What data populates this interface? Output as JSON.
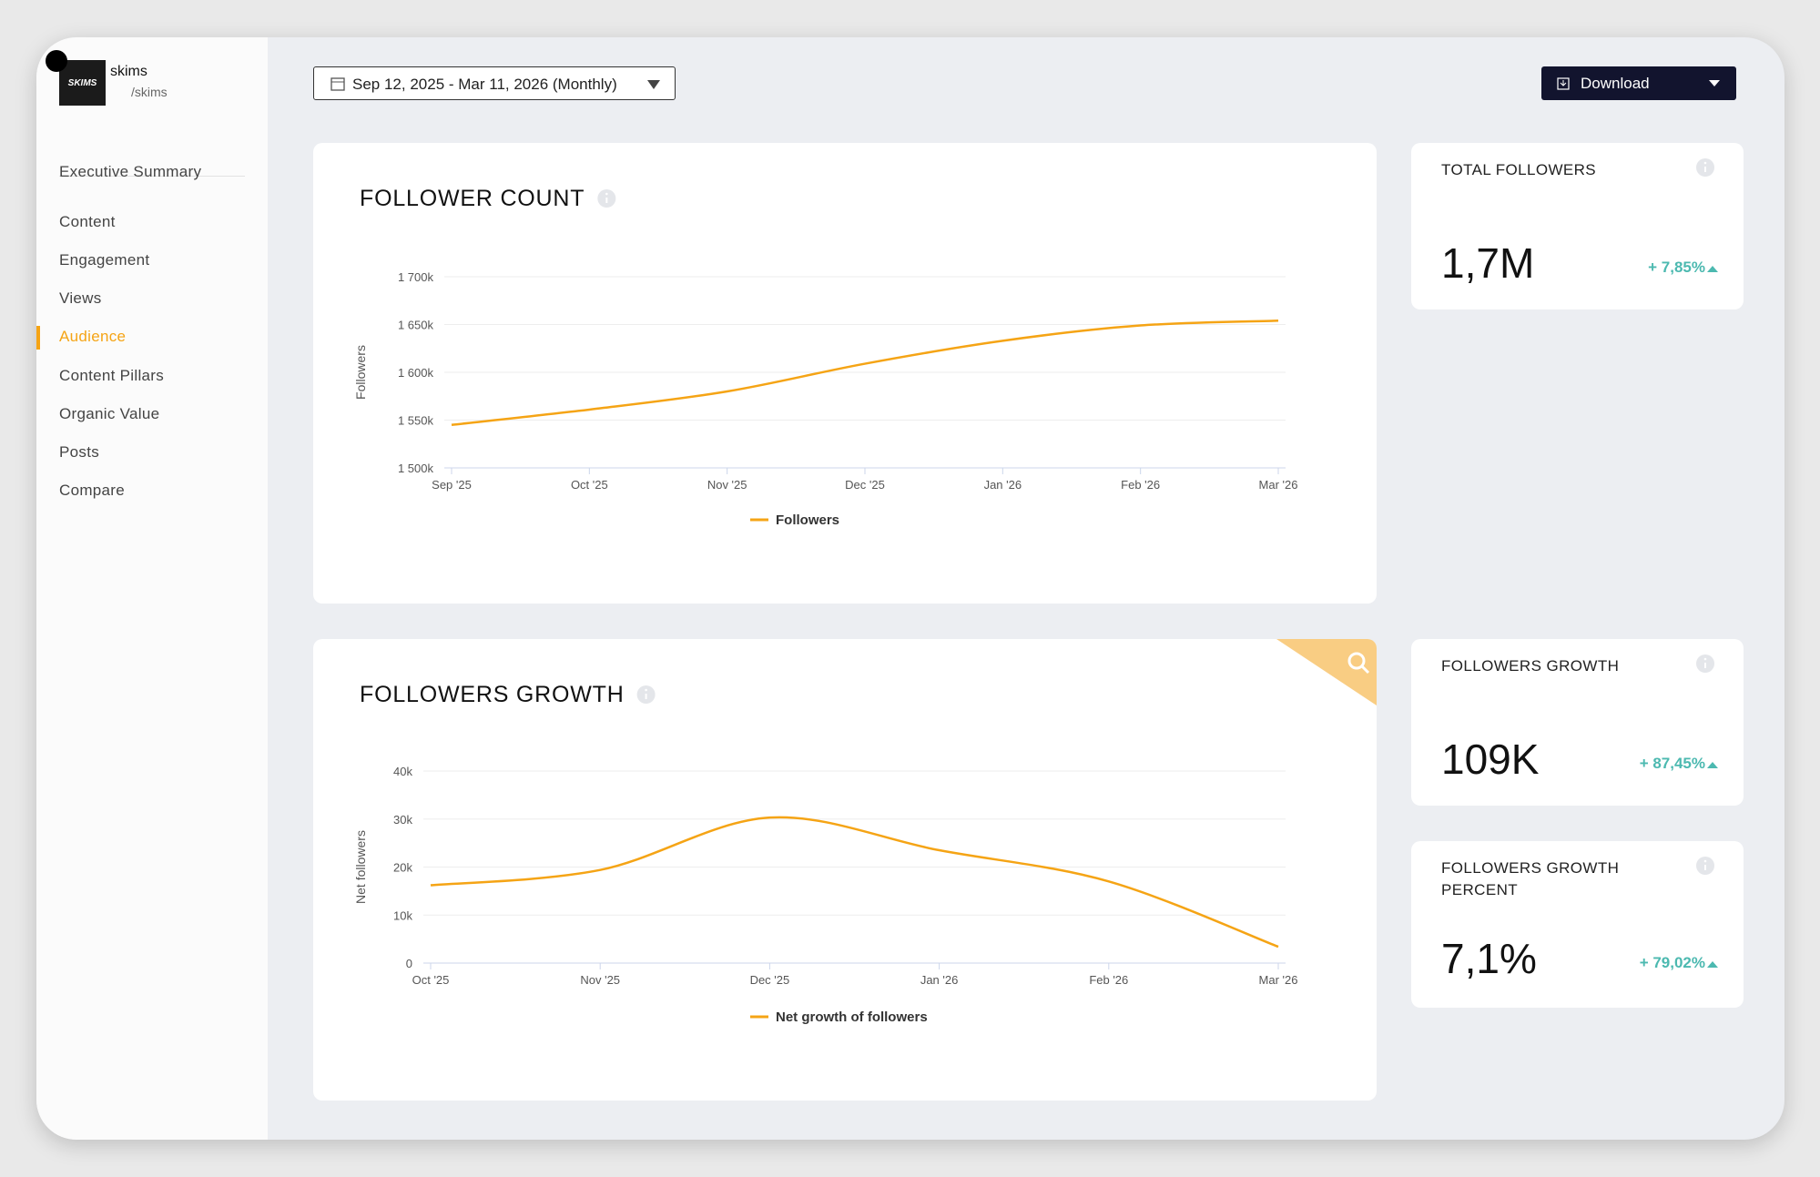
{
  "profile": {
    "name": "skims",
    "handle": "/skims",
    "logo": "SKIMS"
  },
  "nav": {
    "items": [
      "Executive Summary",
      "Content",
      "Engagement",
      "Views",
      "Audience",
      "Content Pillars",
      "Organic Value",
      "Posts",
      "Compare"
    ],
    "active": 4
  },
  "toolbar": {
    "date_range": "Sep 12, 2025 - Mar 11, 2026 (Monthly)",
    "download": "Download"
  },
  "chart_data": [
    {
      "type": "line",
      "title": "FOLLOWER COUNT",
      "y_label": "Followers",
      "categories": [
        "Sep '25",
        "Oct '25",
        "Nov '25",
        "Dec '25",
        "Jan '26",
        "Feb '26",
        "Mar '26"
      ],
      "series": [
        {
          "name": "Followers",
          "color": "#f5a415",
          "values": [
            1545000,
            1561000,
            1580000,
            1609000,
            1633000,
            1649000,
            1654000
          ]
        }
      ],
      "ylim": [
        1500000,
        1700000
      ],
      "yticks": [
        {
          "value": 1500000,
          "label": "1 500k"
        },
        {
          "value": 1550000,
          "label": "1 550k"
        },
        {
          "value": 1600000,
          "label": "1 600k"
        },
        {
          "value": 1650000,
          "label": "1 650k"
        },
        {
          "value": 1700000,
          "label": "1 700k"
        }
      ],
      "grid": true,
      "legend": "bottom"
    },
    {
      "type": "line",
      "title": "FOLLOWERS GROWTH",
      "y_label": "Net followers",
      "categories": [
        "Oct '25",
        "Nov '25",
        "Dec '25",
        "Jan '26",
        "Feb '26",
        "Mar '26"
      ],
      "series": [
        {
          "name": "Net growth of followers",
          "color": "#f5a415",
          "values": [
            16200,
            19400,
            30300,
            23500,
            17000,
            3400
          ]
        }
      ],
      "ylim": [
        0,
        40000
      ],
      "yticks": [
        0,
        {
          "value": 10000,
          "label": "10k"
        },
        {
          "value": 20000,
          "label": "20k"
        },
        {
          "value": 30000,
          "label": "30k"
        },
        {
          "value": 40000,
          "label": "40k"
        }
      ],
      "grid": true,
      "legend": "bottom"
    }
  ],
  "kpis": [
    {
      "title": "TOTAL FOLLOWERS",
      "value": "1,7M",
      "change": "+ 7,85%"
    },
    {
      "title": "FOLLOWERS GROWTH",
      "value": "109K",
      "change": "+ 87,45%"
    },
    {
      "title": "FOLLOWERS GROWTH PERCENT",
      "value": "7,1%",
      "change": "+ 79,02%"
    }
  ]
}
